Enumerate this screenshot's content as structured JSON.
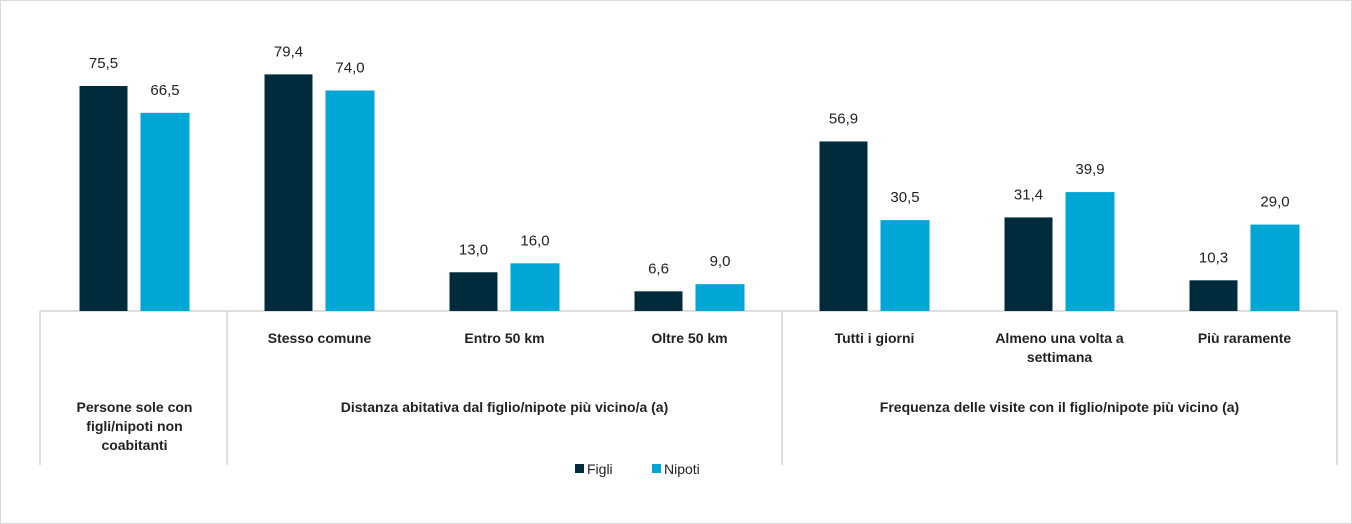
{
  "chart_data": {
    "type": "bar",
    "categories": [
      null,
      "Stesso comune",
      "Entro 50 km",
      "Oltre 50 km",
      "Tutti i giorni",
      "Almeno una volta a settimana",
      "Più raramente"
    ],
    "group_labels": [
      "Persone sole con figli/nipoti non coabitanti",
      "Distanza abitativa dal figlio/nipote più vicino/a (a)",
      "Frequenza delle visite con il figlio/nipote più vicino (a)"
    ],
    "series": [
      {
        "name": "Figli",
        "color": "#002b3d",
        "values": [
          75.5,
          79.4,
          13.0,
          6.6,
          56.9,
          31.4,
          10.3
        ],
        "value_labels": [
          "75,5",
          "79,4",
          "13,0",
          "6,6",
          "56,9",
          "31,4",
          "10,3"
        ]
      },
      {
        "name": "Nipoti",
        "color": "#00a6d6",
        "values": [
          66.5,
          74.0,
          16.0,
          9.0,
          30.5,
          39.9,
          29.0
        ],
        "value_labels": [
          "66,5",
          "74,0",
          "16,0",
          "9,0",
          "30,5",
          "39,9",
          "29,0"
        ]
      }
    ],
    "ylim": [
      0,
      100
    ],
    "legend": "bottom"
  }
}
